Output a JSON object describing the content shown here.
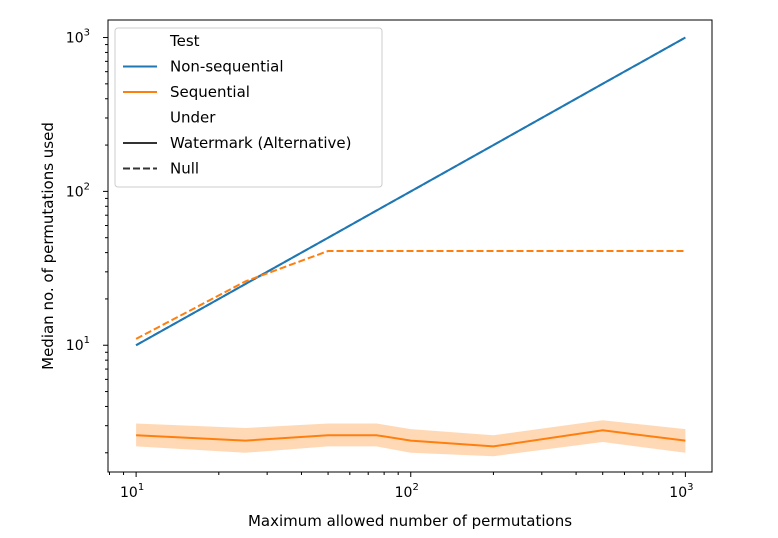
{
  "chart_data": {
    "type": "line",
    "xlabel": "Maximum allowed number of permutations",
    "ylabel": "Median no. of permutations used",
    "xscale": "log",
    "yscale": "log",
    "xlim": [
      7.9,
      1250
    ],
    "ylim": [
      1.5,
      1300
    ],
    "grid": false,
    "x_ticks": [
      {
        "base": "10",
        "exp": "1",
        "value": 10
      },
      {
        "base": "10",
        "exp": "2",
        "value": 100
      },
      {
        "base": "10",
        "exp": "3",
        "value": 1000
      }
    ],
    "y_ticks": [
      {
        "base": "10",
        "exp": "1",
        "value": 10
      },
      {
        "base": "10",
        "exp": "2",
        "value": 100
      },
      {
        "base": "10",
        "exp": "3",
        "value": 1000
      }
    ],
    "colors": {
      "non_sequential": "#1f77b4",
      "sequential": "#ff7f0e",
      "band": "#ffbf86"
    },
    "legend": {
      "placement": "top-left",
      "entries": [
        {
          "label": "Test",
          "style": "header",
          "color": ""
        },
        {
          "label": "Non-sequential",
          "style": "solid",
          "color": "#1f77b4"
        },
        {
          "label": "Sequential",
          "style": "solid",
          "color": "#ff7f0e"
        },
        {
          "label": "Under",
          "style": "header",
          "color": ""
        },
        {
          "label": "Watermark (Alternative)",
          "style": "solid",
          "color": "#333333"
        },
        {
          "label": "Null",
          "style": "dashed",
          "color": "#333333"
        }
      ]
    },
    "series": [
      {
        "test": "Non-sequential",
        "under": "Null",
        "dash": "dashed",
        "color": "#1f77b4",
        "x": [
          10,
          25,
          50,
          75,
          100,
          200,
          500,
          1000
        ],
        "y": [
          10,
          25,
          50,
          75,
          100,
          200,
          500,
          1000
        ]
      },
      {
        "test": "Non-sequential",
        "under": "Watermark (Alternative)",
        "dash": "solid",
        "color": "#1f77b4",
        "x": [
          10,
          25,
          50,
          75,
          100,
          200,
          500,
          1000
        ],
        "y": [
          10,
          25,
          50,
          75,
          100,
          200,
          500,
          1000
        ]
      },
      {
        "test": "Sequential",
        "under": "Null",
        "dash": "dashed",
        "color": "#ff7f0e",
        "x": [
          10,
          25,
          50,
          75,
          100,
          200,
          500,
          1000
        ],
        "y": [
          11,
          26,
          41,
          41,
          41,
          41,
          41,
          41
        ]
      },
      {
        "test": "Sequential",
        "under": "Watermark (Alternative)",
        "dash": "solid",
        "color": "#ff7f0e",
        "x": [
          10,
          25,
          50,
          75,
          100,
          200,
          500,
          1000
        ],
        "y": [
          2.6,
          2.4,
          2.6,
          2.6,
          2.4,
          2.2,
          2.8,
          2.4
        ],
        "ci_low": [
          2.2,
          2.0,
          2.2,
          2.2,
          2.0,
          1.9,
          2.35,
          2.0
        ],
        "ci_high": [
          3.1,
          2.9,
          3.1,
          3.1,
          2.85,
          2.6,
          3.25,
          2.85
        ]
      }
    ]
  }
}
